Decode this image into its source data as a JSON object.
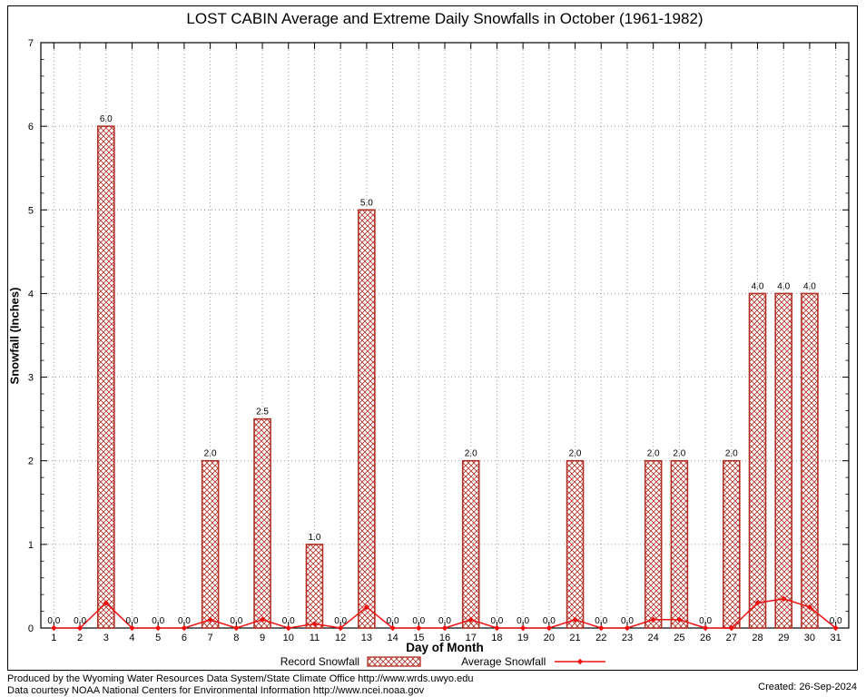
{
  "chart_data": {
    "type": "bar",
    "title": "LOST CABIN Average and Extreme Daily Snowfalls in October (1961-1982)",
    "xlabel": "Day of Month",
    "ylabel": "Snowfall (Inches)",
    "categories": [
      1,
      2,
      3,
      4,
      5,
      6,
      7,
      8,
      9,
      10,
      11,
      12,
      13,
      14,
      15,
      16,
      17,
      18,
      19,
      20,
      21,
      22,
      23,
      24,
      25,
      26,
      27,
      28,
      29,
      30,
      31
    ],
    "series": [
      {
        "name": "Record Snowfall",
        "type": "bar",
        "values": [
          0,
          0,
          6,
          0,
          0,
          0,
          2,
          0,
          2.5,
          0,
          1,
          0,
          5,
          0,
          0,
          0,
          2,
          0,
          0,
          0,
          2,
          0,
          0,
          2,
          2,
          0,
          2,
          4,
          4,
          4,
          0
        ]
      },
      {
        "name": "Average Snowfall",
        "type": "line",
        "values": [
          0,
          0,
          0.3,
          0,
          0,
          0,
          0.1,
          0,
          0.1,
          0,
          0.05,
          0,
          0.25,
          0,
          0,
          0,
          0.1,
          0,
          0,
          0,
          0.1,
          0,
          0,
          0.1,
          0.1,
          0,
          0,
          0.3,
          0.35,
          0.25,
          0
        ]
      }
    ],
    "ylim": [
      0,
      7
    ],
    "xlim": [
      0.5,
      31.5
    ],
    "y_tick_step": 1,
    "y_minor_divisions": 5,
    "grid": true,
    "value_labels_series": 0,
    "value_label_format": "1-decimal",
    "legend_position": "bottom"
  },
  "colors": {
    "record": "#b03025",
    "average": "#ee1111",
    "grid": "#9a9a9a",
    "frame": "#000000",
    "text": "#000000",
    "background": "#ffffff"
  },
  "footer": {
    "line1": "Produced by the Wyoming Water Resources Data System/State Climate Office http://www.wrds.uwyo.edu",
    "line2": "Data courtesy NOAA National Centers for Environmental Information http://www.ncei.noaa.gov",
    "created": "Created: 26-Sep-2024"
  }
}
